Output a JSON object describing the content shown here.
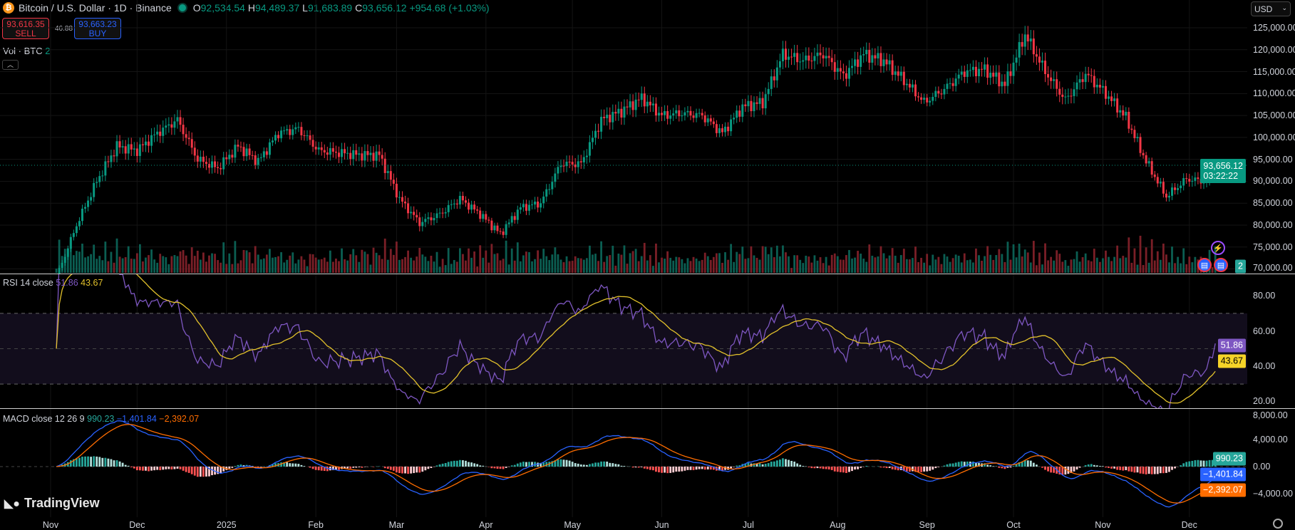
{
  "header": {
    "symbol_icon": "bitcoin-icon",
    "title": "Bitcoin / U.S. Dollar · 1D · Binance",
    "market_status": "market-open-dot",
    "ohlc": {
      "o_label": "O",
      "o": "92,534.54",
      "h_label": "H",
      "h": "94,489.37",
      "l_label": "L",
      "l": "91,683.89",
      "c_label": "C",
      "c": "93,656.12",
      "change": "+954.68 (+1.03%)"
    }
  },
  "trade": {
    "sell_price": "93,616.35",
    "sell_label": "SELL",
    "spread": "46.88",
    "buy_price": "93,663.23",
    "buy_label": "BUY"
  },
  "volume_legend": {
    "label": "Vol · BTC",
    "value": "2"
  },
  "currency": "USD",
  "price_axis": [
    {
      "value": 125000,
      "label": "125,000.00"
    },
    {
      "value": 120000,
      "label": "120,000.00"
    },
    {
      "value": 115000,
      "label": "115,000.00"
    },
    {
      "value": 110000,
      "label": "110,000.00"
    },
    {
      "value": 105000,
      "label": "105,000.00"
    },
    {
      "value": 100000,
      "label": "100,000.00"
    },
    {
      "value": 95000,
      "label": "95,000.00"
    },
    {
      "value": 90000,
      "label": "90,000.00"
    },
    {
      "value": 85000,
      "label": "85,000.00"
    },
    {
      "value": 80000,
      "label": "80,000.00"
    },
    {
      "value": 75000,
      "label": "75,000.00"
    },
    {
      "value": 70000,
      "label": "70,000.00"
    }
  ],
  "last_price": {
    "value": "93,656.12",
    "countdown": "03:22:22"
  },
  "rsi": {
    "label": "RSI 14 close",
    "value": "51.86",
    "ma": "43.67",
    "axis": [
      {
        "value": 80,
        "label": "80.00"
      },
      {
        "value": 60,
        "label": "60.00"
      },
      {
        "value": 40,
        "label": "40.00"
      },
      {
        "value": 20,
        "label": "20.00"
      }
    ],
    "bands": [
      70,
      30
    ]
  },
  "macd": {
    "label": "MACD close 12 26 9",
    "hist": "990.23",
    "macd": "−1,401.84",
    "signal": "−2,392.07",
    "axis": [
      {
        "value": 8000,
        "label": "8,000.00"
      },
      {
        "value": 4000,
        "label": "4,000.00"
      },
      {
        "value": 0,
        "label": "0.00"
      },
      {
        "value": -4000,
        "label": "−4,000.00"
      }
    ]
  },
  "time_axis": [
    {
      "label": "Nov",
      "date": "2024-11-01"
    },
    {
      "label": "Dec",
      "date": "2024-12-01"
    },
    {
      "label": "2025",
      "date": "2025-01-01"
    },
    {
      "label": "Feb",
      "date": "2025-02-01"
    },
    {
      "label": "Mar",
      "date": "2025-03-01"
    },
    {
      "label": "Apr",
      "date": "2025-04-01"
    },
    {
      "label": "May",
      "date": "2025-05-01"
    },
    {
      "label": "Jun",
      "date": "2025-06-01"
    },
    {
      "label": "Jul",
      "date": "2025-07-01"
    },
    {
      "label": "Aug",
      "date": "2025-08-01"
    },
    {
      "label": "Sep",
      "date": "2025-09-01"
    },
    {
      "label": "Oct",
      "date": "2025-10-01"
    },
    {
      "label": "Nov",
      "date": "2025-11-01"
    },
    {
      "label": "Dec",
      "date": "2025-12-01"
    }
  ],
  "brand": "TradingView",
  "colors": {
    "up": "#089981",
    "down": "#f23645",
    "rsi": "#7e57c2",
    "rsi_ma": "#e2c12b",
    "macd": "#2962ff",
    "signal": "#ff6d00",
    "sell": "#f23645",
    "buy": "#2962ff"
  },
  "chart_data": {
    "type": "candlestick",
    "interval": "1D",
    "ylim": [
      72000,
      128000
    ],
    "series": [
      {
        "date": "2024-11-03",
        "close": 68000
      },
      {
        "date": "2024-11-10",
        "close": 80000
      },
      {
        "date": "2024-11-17",
        "close": 90000
      },
      {
        "date": "2024-11-24",
        "close": 98000
      },
      {
        "date": "2024-12-01",
        "close": 97000
      },
      {
        "date": "2024-12-08",
        "close": 101000
      },
      {
        "date": "2024-12-15",
        "close": 104000
      },
      {
        "date": "2024-12-22",
        "close": 95000
      },
      {
        "date": "2024-12-29",
        "close": 93000
      },
      {
        "date": "2025-01-05",
        "close": 98000
      },
      {
        "date": "2025-01-12",
        "close": 94500
      },
      {
        "date": "2025-01-19",
        "close": 101000
      },
      {
        "date": "2025-01-26",
        "close": 102000
      },
      {
        "date": "2025-02-02",
        "close": 97000
      },
      {
        "date": "2025-02-09",
        "close": 96500
      },
      {
        "date": "2025-02-16",
        "close": 96000
      },
      {
        "date": "2025-02-23",
        "close": 96000
      },
      {
        "date": "2025-03-02",
        "close": 86000
      },
      {
        "date": "2025-03-09",
        "close": 80500
      },
      {
        "date": "2025-03-16",
        "close": 82500
      },
      {
        "date": "2025-03-23",
        "close": 86000
      },
      {
        "date": "2025-03-30",
        "close": 82500
      },
      {
        "date": "2025-04-06",
        "close": 78000
      },
      {
        "date": "2025-04-13",
        "close": 84000
      },
      {
        "date": "2025-04-20",
        "close": 85000
      },
      {
        "date": "2025-04-27",
        "close": 94000
      },
      {
        "date": "2025-05-04",
        "close": 94000
      },
      {
        "date": "2025-05-11",
        "close": 104000
      },
      {
        "date": "2025-05-18",
        "close": 106000
      },
      {
        "date": "2025-05-25",
        "close": 109000
      },
      {
        "date": "2025-06-01",
        "close": 105000
      },
      {
        "date": "2025-06-08",
        "close": 105500
      },
      {
        "date": "2025-06-15",
        "close": 105000
      },
      {
        "date": "2025-06-22",
        "close": 101000
      },
      {
        "date": "2025-06-29",
        "close": 107000
      },
      {
        "date": "2025-07-06",
        "close": 108000
      },
      {
        "date": "2025-07-13",
        "close": 119000
      },
      {
        "date": "2025-07-20",
        "close": 117500
      },
      {
        "date": "2025-07-27",
        "close": 119000
      },
      {
        "date": "2025-08-03",
        "close": 114000
      },
      {
        "date": "2025-08-10",
        "close": 119000
      },
      {
        "date": "2025-08-17",
        "close": 117500
      },
      {
        "date": "2025-08-24",
        "close": 113000
      },
      {
        "date": "2025-08-31",
        "close": 108000
      },
      {
        "date": "2025-09-07",
        "close": 111000
      },
      {
        "date": "2025-09-14",
        "close": 115000
      },
      {
        "date": "2025-09-21",
        "close": 115500
      },
      {
        "date": "2025-09-28",
        "close": 112000
      },
      {
        "date": "2025-10-05",
        "close": 123500
      },
      {
        "date": "2025-10-12",
        "close": 115000
      },
      {
        "date": "2025-10-19",
        "close": 108500
      },
      {
        "date": "2025-10-26",
        "close": 114500
      },
      {
        "date": "2025-11-02",
        "close": 110000
      },
      {
        "date": "2025-11-09",
        "close": 104500
      },
      {
        "date": "2025-11-16",
        "close": 94500
      },
      {
        "date": "2025-11-23",
        "close": 86500
      },
      {
        "date": "2025-11-30",
        "close": 90500
      },
      {
        "date": "2025-12-07",
        "close": 90000
      },
      {
        "date": "2025-12-10",
        "close": 93656.12
      }
    ]
  }
}
